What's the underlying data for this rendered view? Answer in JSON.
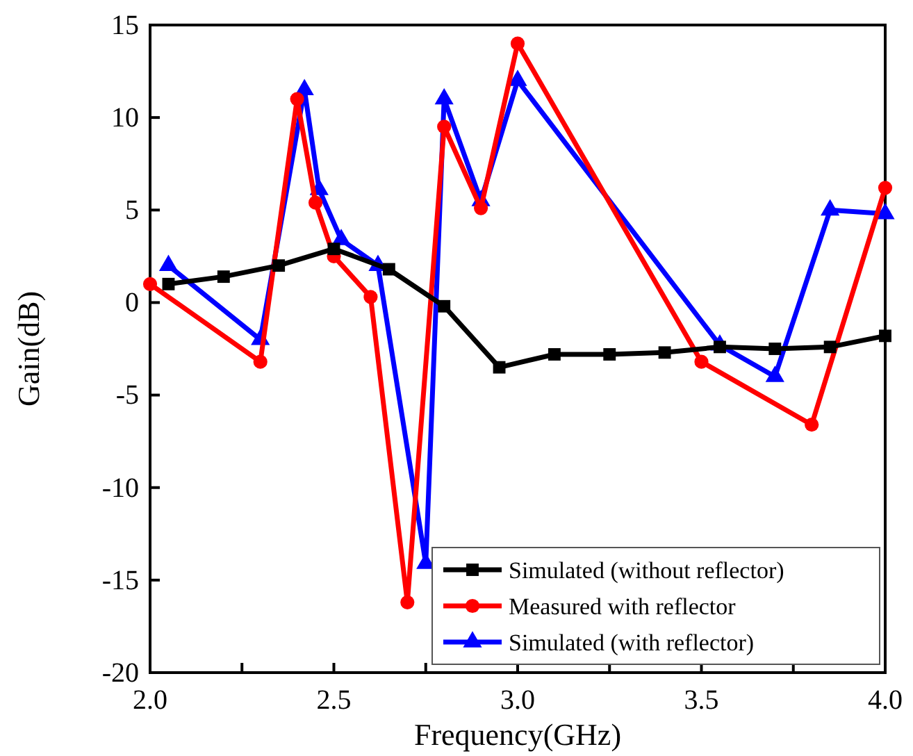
{
  "chart_data": {
    "type": "line",
    "xlabel": "Frequency(GHz)",
    "ylabel": "Gain(dB)",
    "xlim": [
      2.0,
      4.0
    ],
    "xticks": [
      {
        "value": 2,
        "label": "2.0"
      },
      {
        "value": 2.25,
        "label": null
      },
      {
        "value": 2.5,
        "label": "2.5"
      },
      {
        "value": 2.75,
        "label": null
      },
      {
        "value": 3,
        "label": "3.0"
      },
      {
        "value": 3.25,
        "label": null
      },
      {
        "value": 3.5,
        "label": "3.5"
      },
      {
        "value": 3.75,
        "label": null
      },
      {
        "value": 4,
        "label": "4.0"
      }
    ],
    "ylim": [
      -20,
      15
    ],
    "yticks": [
      -20,
      -15,
      -10,
      -5,
      0,
      5,
      10,
      15
    ],
    "grid": false,
    "legend": "bottom right",
    "line_style": "solid",
    "series": [
      {
        "name": "Simulated (without reflector)",
        "color": "#000000",
        "marker": "square",
        "x": [
          2.05,
          2.2,
          2.35,
          2.5,
          2.65,
          2.8,
          2.95,
          3.1,
          3.25,
          3.4,
          3.55,
          3.7,
          3.85,
          4.0
        ],
        "values": [
          1.0,
          1.4,
          2.0,
          2.9,
          1.8,
          -0.2,
          -3.5,
          -2.8,
          -2.8,
          -2.7,
          -2.4,
          -2.5,
          -2.4,
          -1.8
        ]
      },
      {
        "name": "Measured with reflector",
        "color": "#ff0000",
        "marker": "circle",
        "x": [
          2.0,
          2.3,
          2.4,
          2.45,
          2.5,
          2.6,
          2.7,
          2.8,
          2.9,
          3.0,
          3.5,
          3.8,
          4.0
        ],
        "values": [
          1.0,
          -3.2,
          11.0,
          5.4,
          2.5,
          0.3,
          -16.2,
          9.5,
          5.1,
          14.0,
          -3.2,
          -6.6,
          6.2
        ]
      },
      {
        "name": "Simulated (with reflector)",
        "color": "#0000ff",
        "marker": "triangle",
        "x": [
          2.05,
          2.3,
          2.42,
          2.46,
          2.52,
          2.62,
          2.75,
          2.8,
          2.9,
          3.0,
          3.55,
          3.7,
          3.85,
          4.0
        ],
        "values": [
          2.0,
          -2.0,
          11.5,
          6.1,
          3.4,
          2.0,
          -14.1,
          11.0,
          5.5,
          12.0,
          -2.3,
          -4.0,
          5.0,
          4.8
        ]
      }
    ]
  }
}
